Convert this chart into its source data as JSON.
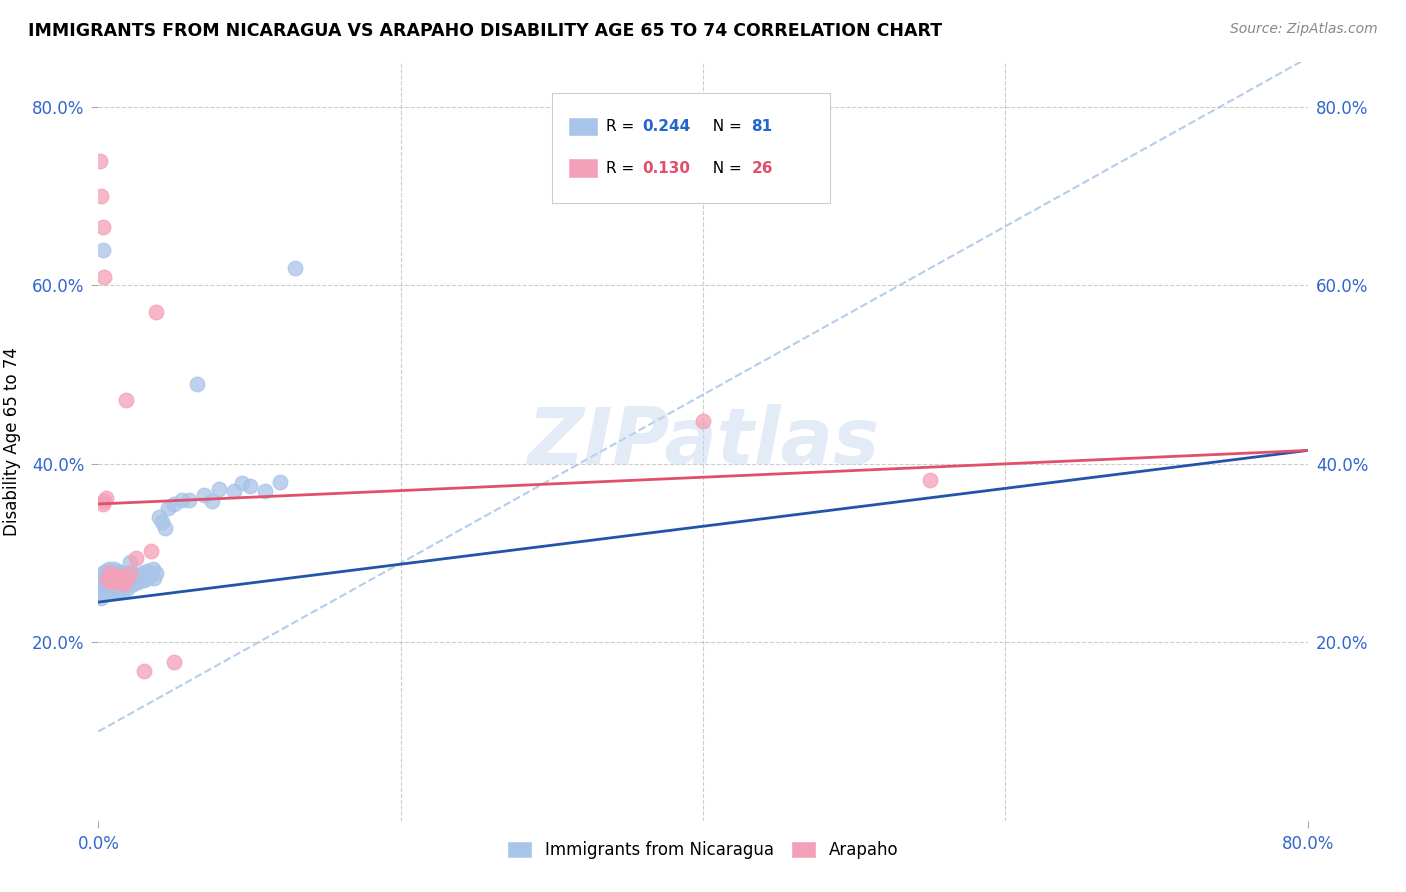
{
  "title": "IMMIGRANTS FROM NICARAGUA VS ARAPAHO DISABILITY AGE 65 TO 74 CORRELATION CHART",
  "source": "Source: ZipAtlas.com",
  "ylabel": "Disability Age 65 to 74",
  "xlim": [
    0.0,
    0.8
  ],
  "ylim": [
    0.0,
    0.85
  ],
  "xtick_positions": [
    0.0,
    0.8
  ],
  "xtick_labels": [
    "0.0%",
    "80.0%"
  ],
  "ytick_positions": [
    0.2,
    0.4,
    0.6,
    0.8
  ],
  "ytick_labels": [
    "20.0%",
    "40.0%",
    "60.0%",
    "80.0%"
  ],
  "blue_R": 0.244,
  "blue_N": 81,
  "pink_R": 0.13,
  "pink_N": 26,
  "blue_color": "#a8c4e8",
  "pink_color": "#f4a0b8",
  "blue_line_color": "#2255aa",
  "pink_line_color": "#e0506a",
  "dashed_line_color": "#a8c4e8",
  "watermark_text": "ZIPatlas",
  "blue_line_x0": 0.0,
  "blue_line_y0": 0.245,
  "blue_line_x1": 0.8,
  "blue_line_y1": 0.415,
  "pink_line_x0": 0.0,
  "pink_line_y0": 0.355,
  "pink_line_x1": 0.8,
  "pink_line_y1": 0.415,
  "dashed_line_x0": 0.0,
  "dashed_line_y0": 0.1,
  "dashed_line_x1": 0.8,
  "dashed_line_y1": 0.855,
  "blue_x": [
    0.001,
    0.002,
    0.003,
    0.003,
    0.003,
    0.004,
    0.004,
    0.004,
    0.005,
    0.005,
    0.005,
    0.006,
    0.006,
    0.006,
    0.007,
    0.007,
    0.007,
    0.008,
    0.008,
    0.008,
    0.009,
    0.009,
    0.01,
    0.01,
    0.01,
    0.011,
    0.011,
    0.012,
    0.012,
    0.013,
    0.013,
    0.014,
    0.014,
    0.015,
    0.015,
    0.016,
    0.016,
    0.017,
    0.017,
    0.018,
    0.018,
    0.019,
    0.019,
    0.02,
    0.02,
    0.021,
    0.022,
    0.022,
    0.023,
    0.024,
    0.025,
    0.026,
    0.027,
    0.028,
    0.029,
    0.03,
    0.031,
    0.032,
    0.033,
    0.035,
    0.036,
    0.037,
    0.038,
    0.04,
    0.042,
    0.044,
    0.046,
    0.05,
    0.055,
    0.06,
    0.065,
    0.07,
    0.075,
    0.08,
    0.09,
    0.095,
    0.1,
    0.11,
    0.12,
    0.13,
    0.003
  ],
  "blue_y": [
    0.26,
    0.25,
    0.265,
    0.278,
    0.255,
    0.27,
    0.262,
    0.275,
    0.268,
    0.28,
    0.255,
    0.272,
    0.26,
    0.275,
    0.268,
    0.282,
    0.258,
    0.272,
    0.265,
    0.278,
    0.26,
    0.275,
    0.258,
    0.27,
    0.282,
    0.265,
    0.278,
    0.258,
    0.272,
    0.265,
    0.28,
    0.258,
    0.272,
    0.265,
    0.278,
    0.26,
    0.275,
    0.262,
    0.278,
    0.265,
    0.278,
    0.26,
    0.275,
    0.265,
    0.278,
    0.29,
    0.265,
    0.278,
    0.265,
    0.268,
    0.272,
    0.268,
    0.27,
    0.275,
    0.278,
    0.27,
    0.275,
    0.28,
    0.272,
    0.278,
    0.282,
    0.272,
    0.278,
    0.34,
    0.335,
    0.328,
    0.35,
    0.355,
    0.36,
    0.36,
    0.49,
    0.365,
    0.358,
    0.372,
    0.37,
    0.378,
    0.375,
    0.37,
    0.38,
    0.62,
    0.64
  ],
  "pink_x": [
    0.001,
    0.002,
    0.003,
    0.004,
    0.005,
    0.006,
    0.007,
    0.008,
    0.009,
    0.01,
    0.011,
    0.013,
    0.015,
    0.017,
    0.019,
    0.021,
    0.025,
    0.03,
    0.038,
    0.05,
    0.003,
    0.004,
    0.018,
    0.035,
    0.4,
    0.55
  ],
  "pink_y": [
    0.74,
    0.7,
    0.355,
    0.358,
    0.362,
    0.27,
    0.278,
    0.268,
    0.275,
    0.272,
    0.268,
    0.275,
    0.27,
    0.265,
    0.272,
    0.278,
    0.295,
    0.168,
    0.57,
    0.178,
    0.665,
    0.61,
    0.472,
    0.302,
    0.448,
    0.382
  ]
}
